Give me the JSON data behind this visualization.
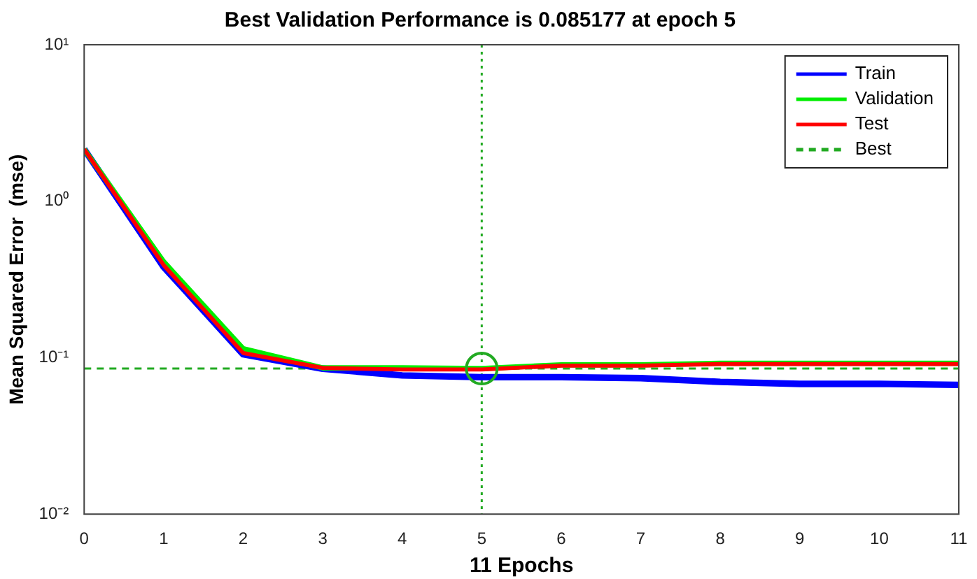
{
  "chart_data": {
    "type": "line",
    "title": "Best Validation Performance is 0.085177 at epoch 5",
    "xlabel": "11 Epochs",
    "ylabel": "Mean Squared Error  (mse)",
    "x": [
      0,
      1,
      2,
      3,
      4,
      5,
      6,
      7,
      8,
      9,
      10,
      11
    ],
    "series": [
      {
        "name": "Train",
        "color": "#0000ff",
        "values": [
          2.15,
          0.38,
          0.105,
          0.085,
          0.077,
          0.075,
          0.075,
          0.074,
          0.07,
          0.068,
          0.068,
          0.067
        ]
      },
      {
        "name": "Validation",
        "color": "#00ee00",
        "values": [
          2.15,
          0.41,
          0.114,
          0.086,
          0.086,
          0.085177,
          0.09,
          0.09,
          0.092,
          0.092,
          0.092,
          0.092
        ]
      },
      {
        "name": "Test",
        "color": "#ff0000",
        "values": [
          2.15,
          0.39,
          0.107,
          0.086,
          0.084,
          0.084,
          0.089,
          0.089,
          0.091,
          0.091,
          0.091,
          0.091
        ]
      },
      {
        "name": "Best",
        "type": "scatter",
        "marker": "circle",
        "line_style": "dashed",
        "color": "#22aa22",
        "x": [
          5
        ],
        "values": [
          0.085177
        ]
      }
    ],
    "ref_lines": [
      {
        "axis": "x",
        "value": 5,
        "color": "#22aa22",
        "line_style": "dotted"
      },
      {
        "axis": "y",
        "value": 0.085177,
        "color": "#22aa22",
        "line_style": "dashed"
      }
    ],
    "log": "y",
    "xlim": [
      0,
      11
    ],
    "xticks": [
      0,
      1,
      2,
      3,
      4,
      5,
      6,
      7,
      8,
      9,
      10,
      11
    ],
    "ylim": [
      0.01,
      10
    ],
    "yticks": [
      {
        "value": 0.01,
        "label": "10⁻²"
      },
      {
        "value": 0.1,
        "label": "10⁻¹"
      },
      {
        "value": 1,
        "label": "10⁰"
      },
      {
        "value": 10,
        "label": "10¹"
      }
    ],
    "grid": false,
    "legend": "top right"
  }
}
